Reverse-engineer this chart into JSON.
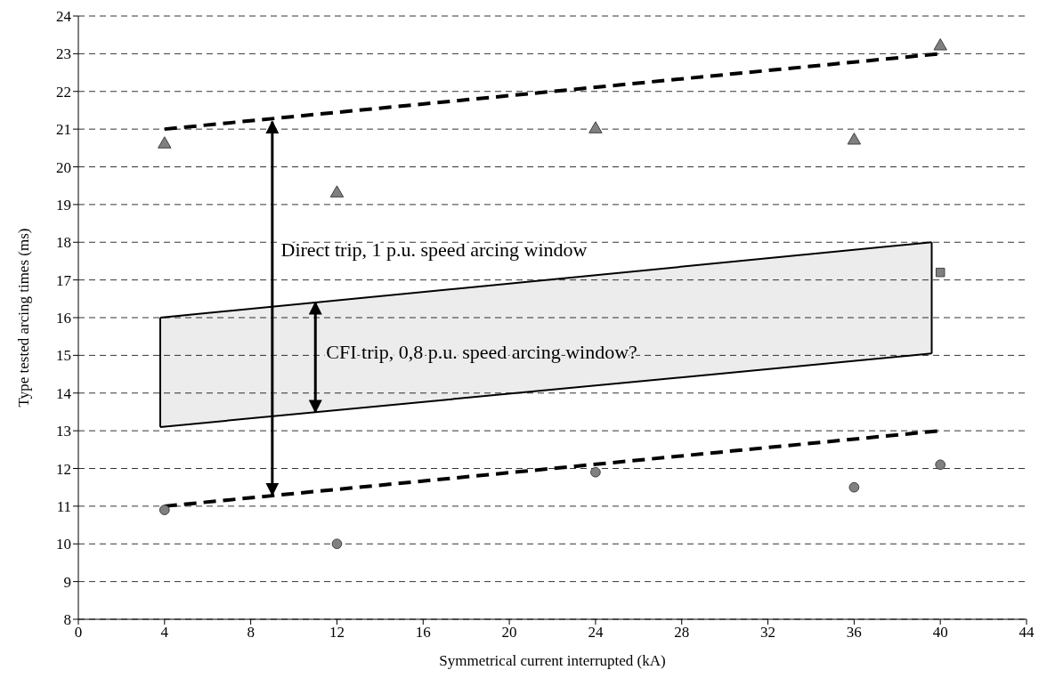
{
  "chart_data": {
    "type": "scatter",
    "xlabel": "Symmetrical current interrupted (kA)",
    "ylabel": "Type tested arcing times (ms)",
    "xlim": [
      0,
      44
    ],
    "xticks": [
      0,
      4,
      8,
      12,
      16,
      20,
      24,
      28,
      32,
      36,
      40,
      44
    ],
    "ylim": [
      8,
      24
    ],
    "yticks": [
      8,
      9,
      10,
      11,
      12,
      13,
      14,
      15,
      16,
      17,
      18,
      19,
      20,
      21,
      22,
      23,
      24
    ],
    "grid": "y",
    "series": [
      {
        "type": "line",
        "color": "#000000",
        "line_style": "solid",
        "marker": "none",
        "x": [
          3.8,
          39.6
        ],
        "values": [
          16,
          18
        ]
      },
      {
        "type": "line",
        "color": "#000000",
        "line_style": "solid",
        "marker": "none",
        "x": [
          3.8,
          39.6
        ],
        "values": [
          13.1,
          15.05
        ]
      },
      {
        "type": "line",
        "color": "#000000",
        "line_style": "dashed",
        "marker": "none",
        "x": [
          4,
          40
        ],
        "values": [
          21,
          23
        ]
      },
      {
        "type": "line",
        "color": "#000000",
        "line_style": "dashed",
        "marker": "none",
        "x": [
          4,
          40
        ],
        "values": [
          11,
          13
        ]
      },
      {
        "color": "#808080",
        "marker": "triangle",
        "x": [
          4,
          12,
          24,
          36,
          40
        ],
        "values": [
          20.6,
          19.3,
          21,
          20.7,
          23.2
        ]
      },
      {
        "color": "#808080",
        "marker": "circle",
        "x": [
          4,
          12,
          24,
          36,
          40
        ],
        "values": [
          10.9,
          10,
          11.9,
          11.5,
          12.1
        ]
      },
      {
        "color": "#808080",
        "marker": "square",
        "x": [
          40
        ],
        "values": [
          17.2
        ]
      }
    ],
    "annotations": [
      "Direct trip, 1 p.u. speed arcing window",
      "CFI trip, 0,8 p.u. speed arcing window?"
    ]
  }
}
